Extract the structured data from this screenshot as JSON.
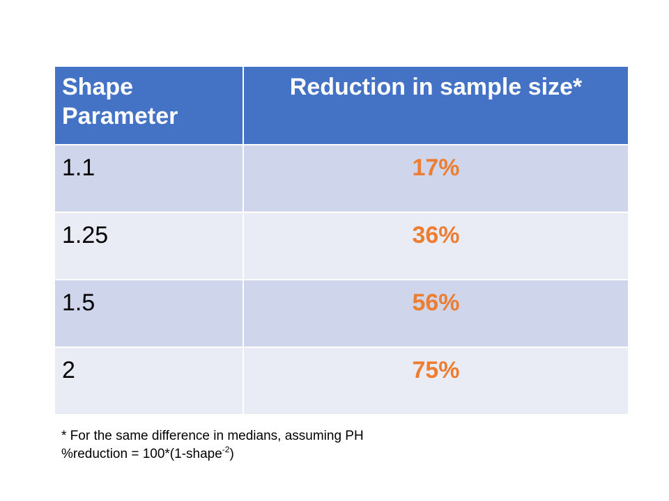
{
  "table": {
    "headers": {
      "shape_line1": "Shape",
      "shape_line2": "Parameter",
      "reduction": "Reduction in sample size*"
    },
    "rows": [
      {
        "shape": "1.1",
        "reduction": "17%"
      },
      {
        "shape": "1.25",
        "reduction": "36%"
      },
      {
        "shape": "1.5",
        "reduction": "56%"
      },
      {
        "shape": "2",
        "reduction": "75%"
      }
    ]
  },
  "footnote": {
    "line1": "* For the same difference in medians, assuming PH",
    "line2_prefix": "%reduction = 100*(1-shape",
    "line2_exponent": "-2",
    "line2_suffix": ")"
  },
  "colors": {
    "header_bg": "#4472c4",
    "row_dark": "#cfd5ea",
    "row_light": "#e9ebf5",
    "accent_orange": "#ed7d31"
  }
}
